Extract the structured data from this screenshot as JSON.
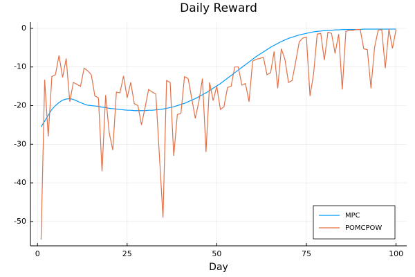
{
  "chart_data": {
    "type": "line",
    "title": "Daily Reward",
    "xlabel": "Day",
    "x": [
      1,
      2,
      3,
      4,
      5,
      6,
      7,
      8,
      9,
      10,
      11,
      12,
      13,
      14,
      15,
      16,
      17,
      18,
      19,
      20,
      21,
      22,
      23,
      24,
      25,
      26,
      27,
      28,
      29,
      30,
      31,
      32,
      33,
      34,
      35,
      36,
      37,
      38,
      39,
      40,
      41,
      42,
      43,
      44,
      45,
      46,
      47,
      48,
      49,
      50,
      51,
      52,
      53,
      54,
      55,
      56,
      57,
      58,
      59,
      60,
      61,
      62,
      63,
      64,
      65,
      66,
      67,
      68,
      69,
      70,
      71,
      72,
      73,
      74,
      75,
      76,
      77,
      78,
      79,
      80,
      81,
      82,
      83,
      84,
      85,
      86,
      87,
      88,
      89,
      90,
      91,
      92,
      93,
      94,
      95,
      96,
      97,
      98,
      99,
      100
    ],
    "series": [
      {
        "name": "MPC",
        "color": "#009af9",
        "values": [
          -25.5,
          -24,
          -22.5,
          -21,
          -20,
          -19.2,
          -18.6,
          -18.3,
          -18.2,
          -18.4,
          -18.8,
          -19.2,
          -19.6,
          -19.9,
          -20,
          -20.1,
          -20.2,
          -20.4,
          -20.5,
          -20.7,
          -20.8,
          -20.9,
          -21,
          -21.1,
          -21.2,
          -21.2,
          -21.3,
          -21.3,
          -21.3,
          -21.3,
          -21.2,
          -21.2,
          -21.1,
          -21,
          -20.9,
          -20.7,
          -20.5,
          -20.3,
          -20,
          -19.7,
          -19.4,
          -19,
          -18.6,
          -18.2,
          -17.7,
          -17.2,
          -16.7,
          -16.1,
          -15.5,
          -14.9,
          -14.3,
          -13.6,
          -12.9,
          -12.2,
          -11.5,
          -10.8,
          -10.1,
          -9.4,
          -8.7,
          -8,
          -7.3,
          -6.7,
          -6.1,
          -5.5,
          -4.9,
          -4.4,
          -3.9,
          -3.4,
          -3,
          -2.6,
          -2.3,
          -2,
          -1.7,
          -1.5,
          -1.3,
          -1.1,
          -0.9,
          -0.8,
          -0.7,
          -0.6,
          -0.5,
          -0.5,
          -0.4,
          -0.4,
          -0.3,
          -0.3,
          -0.3,
          -0.3,
          -0.3,
          -0.3,
          -0.2,
          -0.2,
          -0.2,
          -0.2,
          -0.2,
          -0.2,
          -0.2,
          -0.2,
          -0.2,
          -0.2
        ]
      },
      {
        "name": "POMCPOW",
        "color": "#e26f46",
        "values": [
          -54.7,
          -13.3,
          -28,
          -12.5,
          -12,
          -7,
          -12.7,
          -7.8,
          -19,
          -14,
          -14.5,
          -15,
          -10.3,
          -11,
          -12,
          -17.5,
          -18,
          -37,
          -17.3,
          -27,
          -31.5,
          -16.5,
          -16.7,
          -12.3,
          -18,
          -14,
          -19.5,
          -20,
          -25,
          -20.5,
          -15.8,
          -16.5,
          -17,
          -33,
          -49,
          -13.5,
          -14,
          -33,
          -22.3,
          -22,
          -12.5,
          -13,
          -18,
          -23.3,
          -19,
          -13,
          -32,
          -14,
          -18.7,
          -15,
          -21,
          -20.3,
          -15.3,
          -15,
          -10,
          -10,
          -14.7,
          -14.3,
          -19,
          -8.5,
          -8,
          -7.8,
          -7.5,
          -12,
          -11.5,
          -6,
          -15.5,
          -5.3,
          -8,
          -14,
          -13.5,
          -8.7,
          -3.5,
          -2.5,
          -2.3,
          -17.5,
          -11.8,
          -1.5,
          -1.3,
          -8.2,
          -1,
          -1.3,
          -6.5,
          -1.5,
          -15.8,
          -0.8,
          -0.5,
          -0.5,
          -0.3,
          -0.3,
          -5.3,
          -5.5,
          -15.5,
          -5,
          -0.5,
          -0.3,
          -10.3,
          -0.2,
          -5.2,
          -0.3
        ]
      }
    ],
    "xlim": [
      -1.97,
      102.97
    ],
    "xticks": [
      0,
      25,
      50,
      75,
      100
    ],
    "ylim": [
      -56.3,
      1.6
    ],
    "yticks": [
      -50,
      -40,
      -30,
      -20,
      -10,
      0
    ],
    "grid": true,
    "legend": "bottom-right"
  }
}
